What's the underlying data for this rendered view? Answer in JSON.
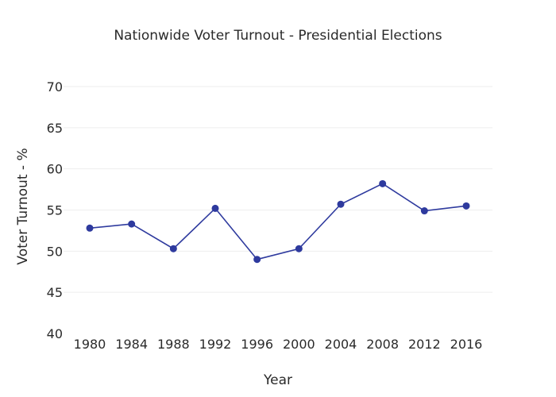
{
  "chart_data": {
    "type": "line",
    "title": "Nationwide Voter Turnout - Presidential Elections",
    "xlabel": "Year",
    "ylabel": "Voter Turnout - %",
    "categories": [
      "1980",
      "1984",
      "1988",
      "1992",
      "1996",
      "2000",
      "2004",
      "2008",
      "2012",
      "2016"
    ],
    "series": [
      {
        "name": "Voter Turnout",
        "values": [
          52.8,
          53.3,
          50.3,
          55.2,
          49.0,
          50.3,
          55.7,
          58.2,
          54.9,
          55.5
        ],
        "color": "#2e3a9e"
      }
    ],
    "ylim": [
      40,
      70
    ],
    "yticks": [
      40,
      45,
      50,
      55,
      60,
      65,
      70
    ],
    "ytick_labels": [
      "40",
      "45",
      "50",
      "55",
      "60",
      "65",
      "70"
    ],
    "grid": true
  }
}
